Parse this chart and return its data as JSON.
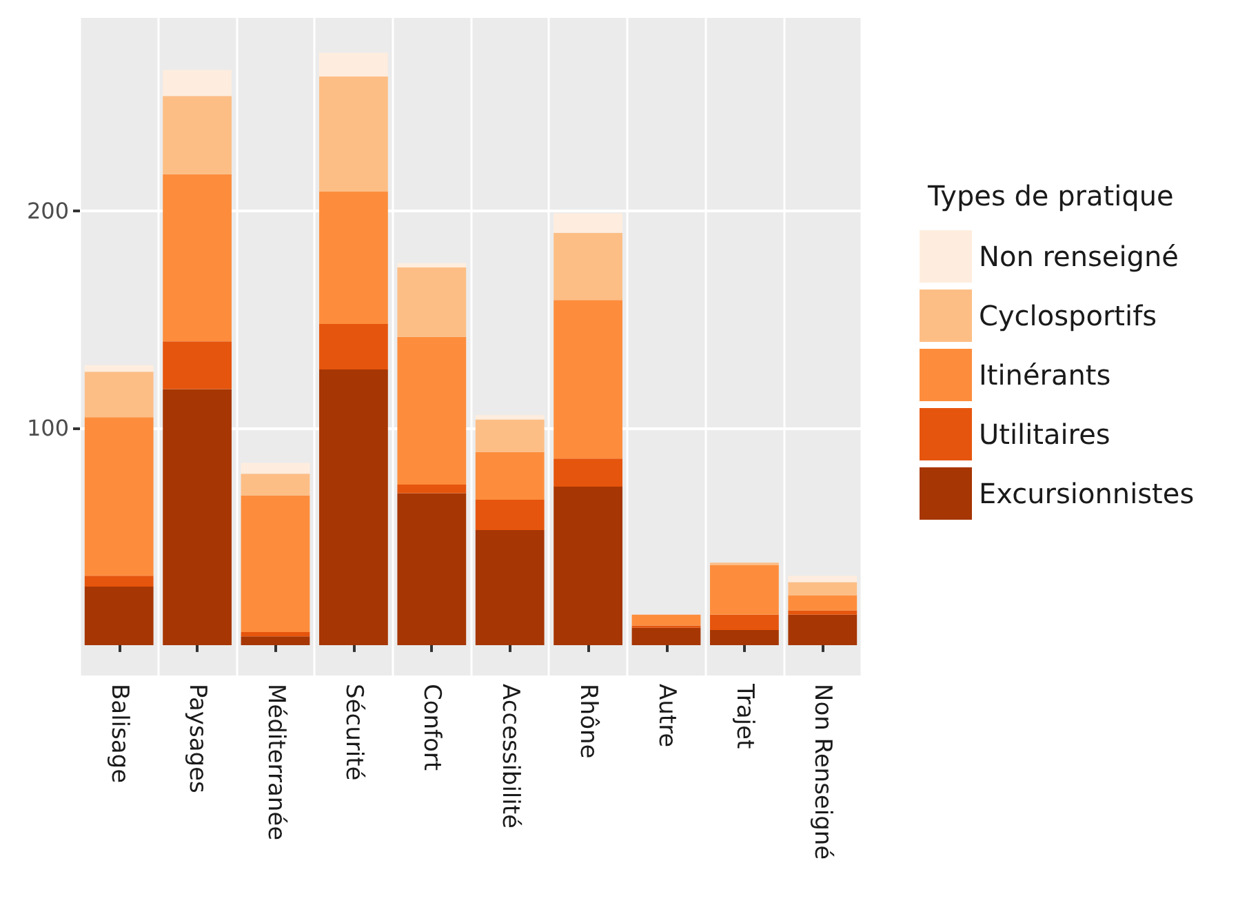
{
  "chart_data": {
    "type": "bar",
    "stacked": true,
    "legend_title": "Types de pratique",
    "legend": "right",
    "grid": true,
    "categories": [
      "Balisage",
      "Paysages",
      "Méditerranée",
      "Sécurité",
      "Confort",
      "Accessibilité",
      "Rhône",
      "Autre",
      "Trajet",
      "Non Renseigné"
    ],
    "ylim": [
      -14,
      289
    ],
    "yticks": [
      100,
      200
    ],
    "series": [
      {
        "name": "Excursionnistes",
        "color": "#a63603",
        "values": [
          27,
          118,
          4,
          127,
          70,
          53,
          73,
          8,
          7,
          14
        ]
      },
      {
        "name": "Utilitaires",
        "color": "#e6550d",
        "values": [
          5,
          22,
          2,
          21,
          4,
          14,
          13,
          1,
          7,
          2
        ]
      },
      {
        "name": "Itinérants",
        "color": "#fd8d3c",
        "values": [
          73,
          77,
          63,
          61,
          68,
          22,
          73,
          5,
          23,
          7
        ]
      },
      {
        "name": "Cyclosportifs",
        "color": "#fdbe85",
        "values": [
          21,
          36,
          10,
          53,
          32,
          15,
          31,
          0,
          1,
          6
        ]
      },
      {
        "name": "Non renseigné",
        "color": "#feedde",
        "values": [
          3,
          12,
          5,
          11,
          2,
          2,
          9,
          0,
          0,
          3
        ]
      }
    ]
  }
}
